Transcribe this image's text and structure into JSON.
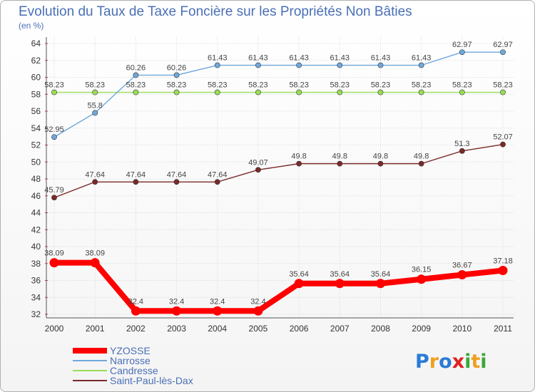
{
  "chart_data": {
    "type": "line",
    "title": "Evolution du Taux de Taxe Foncière sur les Propriétés Non Bâties",
    "subtitle": "(en %)",
    "x": [
      "2000",
      "2001",
      "2002",
      "2003",
      "2004",
      "2005",
      "2006",
      "2007",
      "2008",
      "2009",
      "2010",
      "2011"
    ],
    "ylim": [
      32,
      64
    ],
    "yticks": [
      32,
      34,
      36,
      38,
      40,
      42,
      44,
      46,
      48,
      50,
      52,
      54,
      56,
      58,
      60,
      62,
      64
    ],
    "grid": true,
    "legend_position": "bottom-left",
    "series": [
      {
        "name": "YZOSSE",
        "color": "#ff0000",
        "values": [
          38.09,
          38.09,
          32.4,
          32.4,
          32.4,
          32.4,
          35.64,
          35.64,
          35.64,
          36.15,
          36.67,
          37.18
        ],
        "labels": [
          "38.09",
          "38.09",
          "32.4",
          "32.4",
          "32.4",
          "32.4",
          "35.64",
          "35.64",
          "35.64",
          "36.15",
          "36.67",
          "37.18"
        ]
      },
      {
        "name": "Narrosse",
        "color": "#6fa8dc",
        "values": [
          52.95,
          55.8,
          60.26,
          60.26,
          61.43,
          61.43,
          61.43,
          61.43,
          61.43,
          61.43,
          62.97,
          62.97
        ],
        "labels": [
          "52.95",
          "55.8",
          "60.26",
          "60.26",
          "61.43",
          "61.43",
          "61.43",
          "61.43",
          "61.43",
          "61.43",
          "62.97",
          "62.97"
        ]
      },
      {
        "name": "Candresse",
        "color": "#99dd55",
        "values": [
          58.23,
          58.23,
          58.23,
          58.23,
          58.23,
          58.23,
          58.23,
          58.23,
          58.23,
          58.23,
          58.23,
          58.23
        ],
        "labels": [
          "58.23",
          "58.23",
          "58.23",
          "58.23",
          "58.23",
          "58.23",
          "58.23",
          "58.23",
          "58.23",
          "58.23",
          "58.23",
          "58.23"
        ]
      },
      {
        "name": "Saint-Paul-lès-Dax",
        "color": "#7a2a2a",
        "values": [
          45.79,
          47.64,
          47.64,
          47.64,
          47.64,
          49.07,
          49.8,
          49.8,
          49.8,
          49.8,
          51.3,
          52.07
        ],
        "labels": [
          "45.79",
          "47.64",
          "47.64",
          "47.64",
          "47.64",
          "49.07",
          "49.8",
          "49.8",
          "49.8",
          "49.8",
          "51.3",
          "52.07"
        ]
      }
    ]
  },
  "brand": {
    "letters": [
      "P",
      "r",
      "o",
      "x",
      "i",
      "t",
      "i"
    ],
    "colors": [
      "#2b7bd6",
      "#f0a020",
      "#2b7bd6",
      "#e02020",
      "#3aa83a",
      "#f0a020",
      "#3aa83a"
    ]
  }
}
